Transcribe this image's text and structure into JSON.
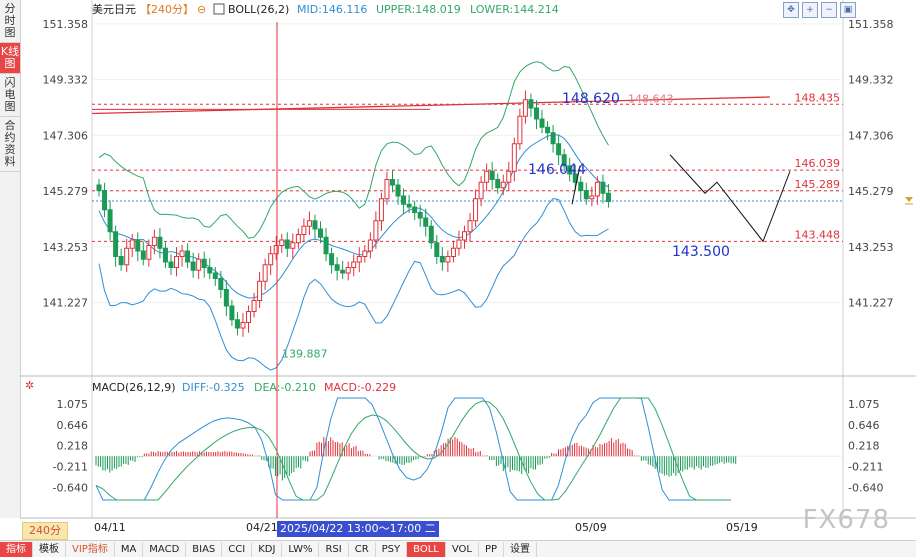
{
  "nav": [
    "分时图",
    "K线图",
    "闪电图",
    "合约资料"
  ],
  "nav_active": 1,
  "header": {
    "symbol": "美元日元",
    "period_tag": "【240分】",
    "boll_label": "BOLL(26,2)",
    "mid": "MID:146.116",
    "upper": "UPPER:148.019",
    "lower": "LOWER:144.214"
  },
  "toolbar_icons": [
    "move-icon",
    "zoom-in-icon",
    "zoom-out-icon",
    "fit-icon"
  ],
  "macd_header": {
    "label": "MACD(26,12,9)",
    "diff": "DIFF:-0.325",
    "dea": "DEA:-0.210",
    "macd": "MACD:-0.229"
  },
  "bottom_tabs": [
    "指标",
    "模板",
    "VIP指标",
    "MA",
    "MACD",
    "BIAS",
    "CCI",
    "KDJ",
    "LW%",
    "RSI",
    "CR",
    "PSY",
    "BOLL",
    "VOL",
    "PP",
    "设置"
  ],
  "bottom_active": "BOLL",
  "period_button": "240分",
  "crosshair_time": "2025/04/22 13:00～17:00 二",
  "watermark": "FX678",
  "colors": {
    "up": "#e0323a",
    "down": "#1a9a55",
    "boll_outer": "#33a86a",
    "boll_mid": "#2f8fd8",
    "level": "#e0323a",
    "annotation": "#2233cc"
  },
  "chart_data": {
    "type": "candlestick",
    "price_axis": {
      "ticks": [
        "151.358",
        "149.332",
        "147.306",
        "145.279",
        "143.253",
        "141.227"
      ],
      "range": [
        139.5,
        151.5
      ]
    },
    "macd_axis": {
      "ticks": [
        "1.075",
        "0.646",
        "0.218",
        "-0.211",
        "-0.640"
      ],
      "range": [
        -0.9,
        1.2
      ]
    },
    "x_labels": [
      "04/11",
      "04/21",
      "05/09",
      "05/19"
    ],
    "level_lines": [
      {
        "value": 148.435,
        "label": "148.435"
      },
      {
        "value": 146.039,
        "label": "146.039"
      },
      {
        "value": 145.289,
        "label": "145.289"
      },
      {
        "value": 143.448,
        "label": "143.448"
      }
    ],
    "current_price": 144.92,
    "annotations": [
      {
        "text": "148.620",
        "price": 148.62
      },
      {
        "text": "148.643",
        "price": 148.643
      },
      {
        "text": "146.044",
        "price": 146.044
      },
      {
        "text": "143.500",
        "price": 143.5
      },
      {
        "text": "139.887",
        "price": 139.887
      }
    ],
    "close_path": [
      145.3,
      144.6,
      143.8,
      142.9,
      142.6,
      143.2,
      143.5,
      143.1,
      142.8,
      143.3,
      143.6,
      143.2,
      142.7,
      142.5,
      142.9,
      143.1,
      142.7,
      142.4,
      142.8,
      142.5,
      142.3,
      142.1,
      141.7,
      141.1,
      140.6,
      140.3,
      140.5,
      140.9,
      141.3,
      142.0,
      142.6,
      143.0,
      143.3,
      143.5,
      143.2,
      143.4,
      143.7,
      144.0,
      144.2,
      143.9,
      143.6,
      143.0,
      142.6,
      142.4,
      142.3,
      142.5,
      142.7,
      142.9,
      143.1,
      143.5,
      144.2,
      145.0,
      145.7,
      145.5,
      145.1,
      144.8,
      144.7,
      144.5,
      144.3,
      144.0,
      143.4,
      142.9,
      142.7,
      142.9,
      143.2,
      143.5,
      143.8,
      144.2,
      145.0,
      145.6,
      146.0,
      145.7,
      145.4,
      145.6,
      146.0,
      147.0,
      148.0,
      148.6,
      148.3,
      147.9,
      147.6,
      147.4,
      147.0,
      146.6,
      146.2,
      145.9,
      145.6,
      145.3,
      145.0,
      145.1,
      145.6,
      145.2,
      144.9
    ],
    "macd_hist": [
      -0.22,
      -0.3,
      -0.34,
      -0.3,
      -0.22,
      -0.12,
      -0.02,
      0.06,
      0.1,
      0.12,
      0.13,
      0.12,
      0.1,
      0.09,
      0.1,
      0.11,
      0.12,
      0.12,
      0.11,
      0.1,
      0.08,
      0.07,
      0.05,
      0.02,
      -0.1,
      -0.26,
      -0.42,
      -0.5,
      -0.46,
      -0.32,
      -0.12,
      0.12,
      0.3,
      0.4,
      0.42,
      0.38,
      0.3,
      0.22,
      0.12,
      0.05,
      0.0,
      -0.08,
      -0.14,
      -0.18,
      -0.18,
      -0.14,
      -0.08,
      -0.02,
      0.06,
      0.16,
      0.28,
      0.38,
      0.4,
      0.32,
      0.22,
      0.12,
      0.02,
      -0.08,
      -0.2,
      -0.32,
      -0.4,
      -0.42,
      -0.36,
      -0.28,
      -0.18,
      -0.05,
      0.08,
      0.2,
      0.26,
      0.28,
      0.22,
      0.18,
      0.26,
      0.34,
      0.4,
      0.36,
      0.28,
      0.16,
      0.02,
      -0.12,
      -0.24,
      -0.34,
      -0.4,
      -0.42,
      -0.42,
      -0.38,
      -0.32,
      -0.28,
      -0.24,
      -0.2,
      -0.16,
      -0.18,
      -0.2
    ]
  }
}
